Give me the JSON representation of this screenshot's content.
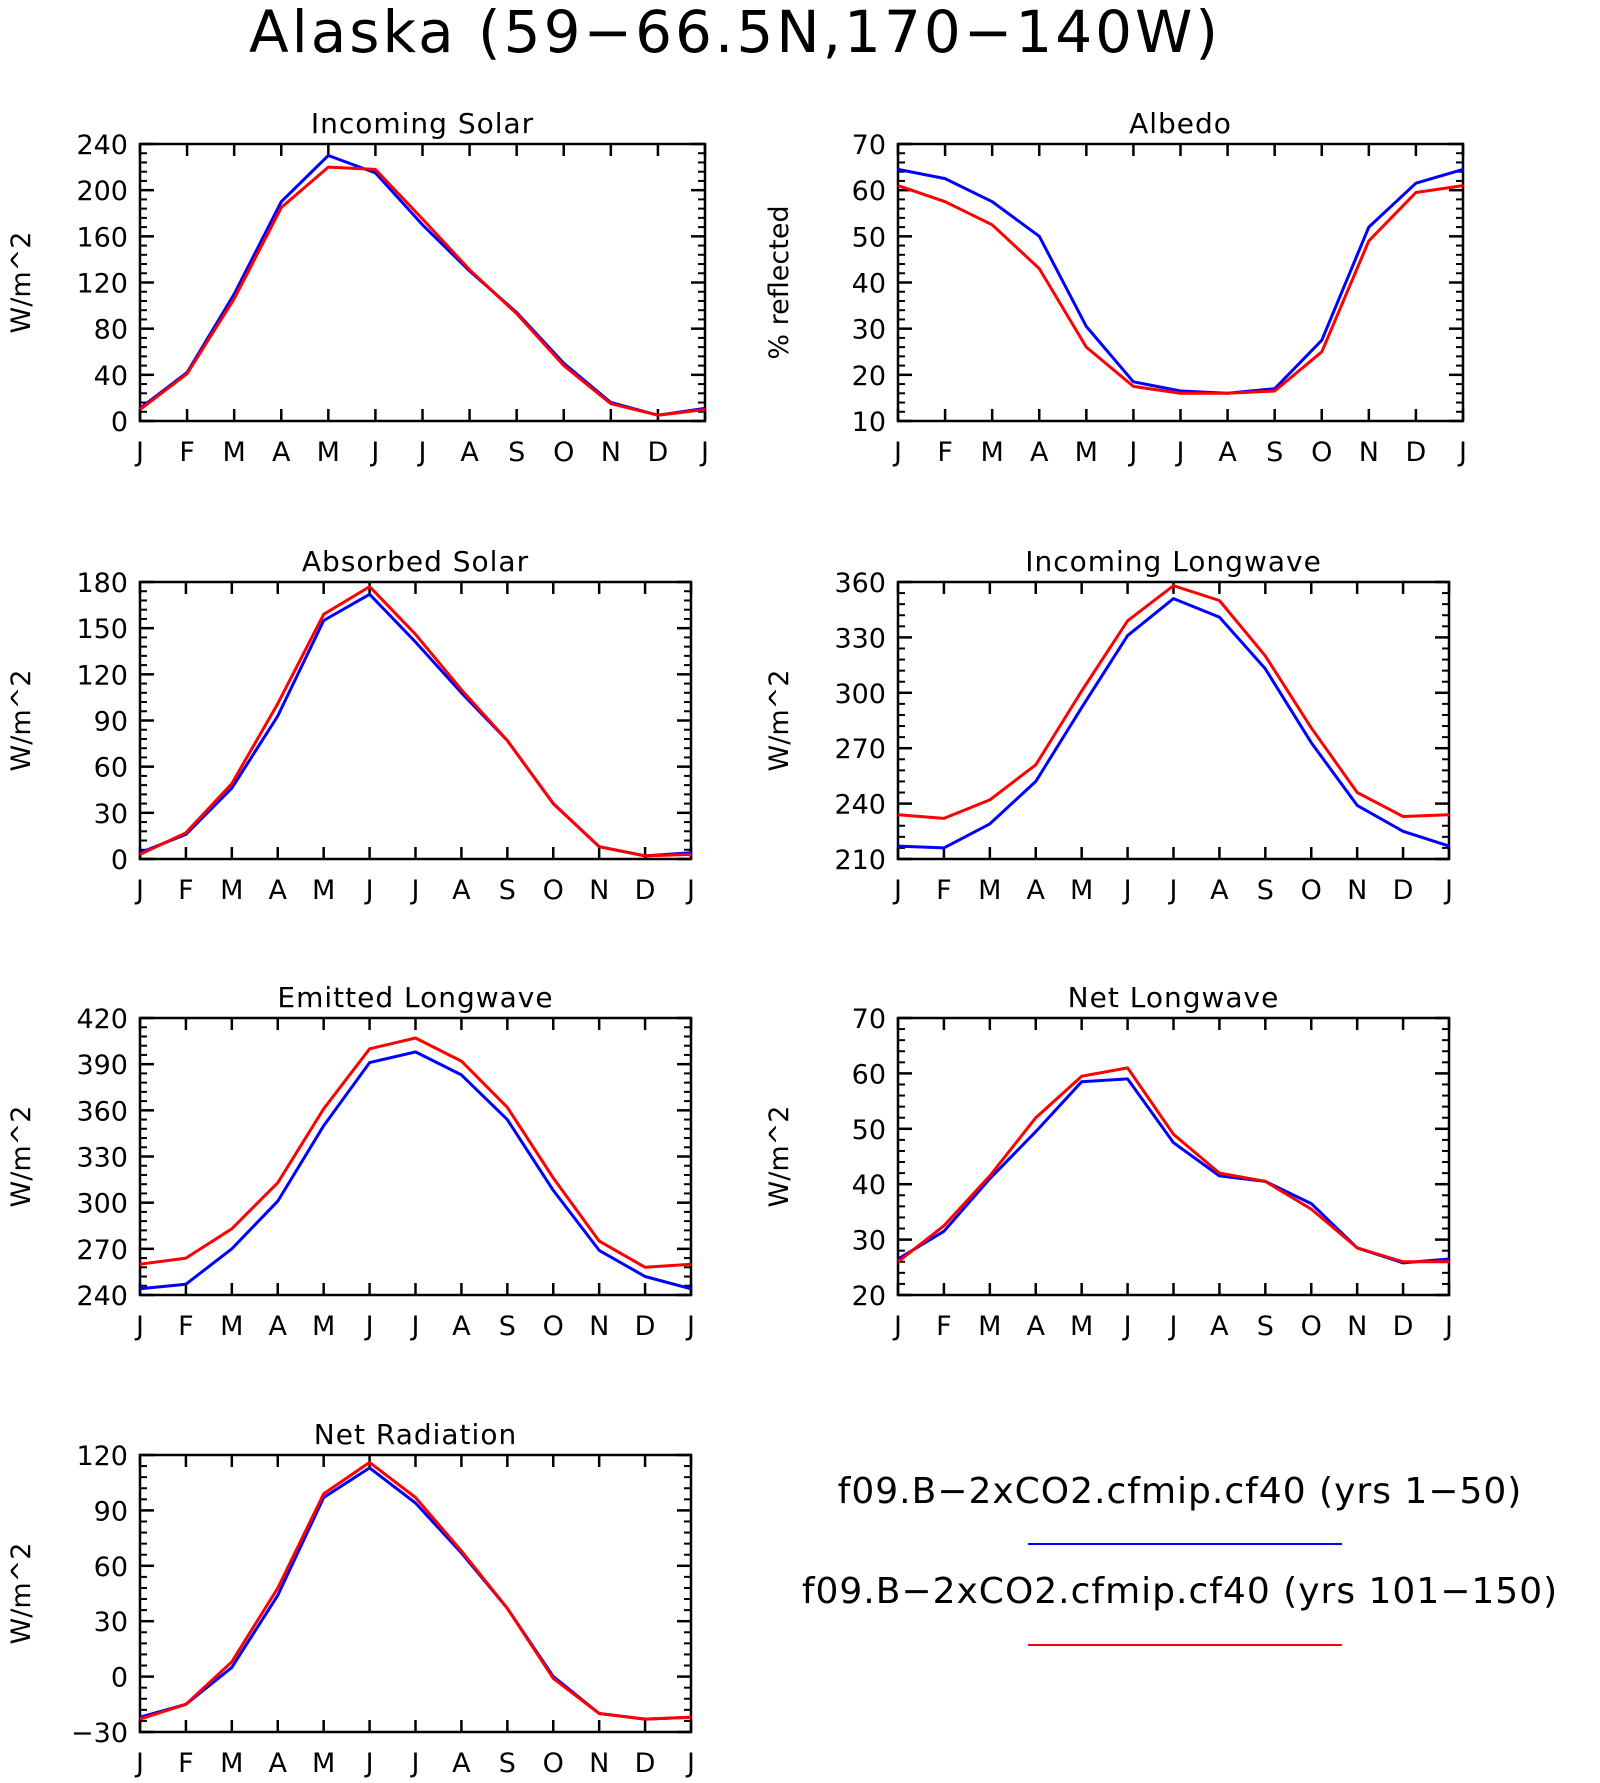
{
  "figure": {
    "title": "Alaska (59−66.5N,170−140W)"
  },
  "legend": [
    {
      "label": "f09.B−2xCO2.cfmip.cf40 (yrs 1−50)",
      "color": "#0000ff"
    },
    {
      "label": "f09.B−2xCO2.cfmip.cf40 (yrs 101−150)",
      "color": "#ff0000"
    }
  ],
  "chart_data": [
    {
      "type": "line",
      "title": "Incoming Solar",
      "ylabel": "W/m^2",
      "ylim": [
        0,
        240
      ],
      "yticks": [
        0,
        40,
        80,
        120,
        160,
        200,
        240
      ],
      "categories": [
        "J",
        "F",
        "M",
        "A",
        "M",
        "J",
        "J",
        "A",
        "S",
        "O",
        "N",
        "D",
        "J"
      ],
      "series": [
        {
          "color": "#0000ff",
          "values": [
            11,
            42,
            110,
            190,
            230,
            215,
            170,
            130,
            94,
            50,
            16,
            5,
            11
          ]
        },
        {
          "color": "#ff0000",
          "values": [
            10,
            41,
            106,
            185,
            220,
            218,
            175,
            131,
            93,
            48,
            15,
            5,
            10
          ]
        }
      ]
    },
    {
      "type": "line",
      "title": "Albedo",
      "ylabel": "% reflected",
      "ylim": [
        10,
        70
      ],
      "yticks": [
        10,
        20,
        30,
        40,
        50,
        60,
        70
      ],
      "categories": [
        "J",
        "F",
        "M",
        "A",
        "M",
        "J",
        "J",
        "A",
        "S",
        "O",
        "N",
        "D",
        "J"
      ],
      "series": [
        {
          "color": "#0000ff",
          "values": [
            64.5,
            62.5,
            57.5,
            50,
            30.5,
            18.5,
            16.5,
            16,
            17,
            27.5,
            52,
            61.5,
            64.5
          ]
        },
        {
          "color": "#ff0000",
          "values": [
            61,
            57.5,
            52.5,
            43,
            26,
            17.5,
            16,
            16,
            16.5,
            25,
            49,
            59.5,
            61
          ]
        }
      ]
    },
    {
      "type": "line",
      "title": "Absorbed Solar",
      "ylabel": "W/m^2",
      "ylim": [
        0,
        180
      ],
      "yticks": [
        0,
        30,
        60,
        90,
        120,
        150,
        180
      ],
      "categories": [
        "J",
        "F",
        "M",
        "A",
        "M",
        "J",
        "J",
        "A",
        "S",
        "O",
        "N",
        "D",
        "J"
      ],
      "series": [
        {
          "color": "#0000ff",
          "values": [
            4,
            16,
            46,
            93,
            155,
            172,
            141,
            108,
            77,
            36,
            8,
            2,
            4
          ]
        },
        {
          "color": "#ff0000",
          "values": [
            3,
            17,
            49,
            101,
            159,
            177,
            146,
            110,
            77,
            36,
            8,
            2,
            3
          ]
        }
      ]
    },
    {
      "type": "line",
      "title": "Incoming Longwave",
      "ylabel": "W/m^2",
      "ylim": [
        210,
        360
      ],
      "yticks": [
        210,
        240,
        270,
        300,
        330,
        360
      ],
      "categories": [
        "J",
        "F",
        "M",
        "A",
        "M",
        "J",
        "J",
        "A",
        "S",
        "O",
        "N",
        "D",
        "J"
      ],
      "series": [
        {
          "color": "#0000ff",
          "values": [
            217,
            216,
            229,
            252,
            292,
            331,
            351,
            341,
            313,
            273,
            239,
            225,
            217
          ]
        },
        {
          "color": "#ff0000",
          "values": [
            234,
            232,
            242,
            261,
            301,
            339,
            358,
            350,
            320,
            281,
            246,
            233,
            234
          ]
        }
      ]
    },
    {
      "type": "line",
      "title": "Emitted Longwave",
      "ylabel": "W/m^2",
      "ylim": [
        240,
        420
      ],
      "yticks": [
        240,
        270,
        300,
        330,
        360,
        390,
        420
      ],
      "categories": [
        "J",
        "F",
        "M",
        "A",
        "M",
        "J",
        "J",
        "A",
        "S",
        "O",
        "N",
        "D",
        "J"
      ],
      "series": [
        {
          "color": "#0000ff",
          "values": [
            244,
            247,
            270,
            301,
            350,
            391,
            398,
            383,
            354,
            308,
            269,
            252,
            244
          ]
        },
        {
          "color": "#ff0000",
          "values": [
            260,
            264,
            283,
            313,
            361,
            400,
            407,
            392,
            362,
            316,
            275,
            258,
            260
          ]
        }
      ]
    },
    {
      "type": "line",
      "title": "Net Longwave",
      "ylabel": "W/m^2",
      "ylim": [
        20,
        70
      ],
      "yticks": [
        20,
        30,
        40,
        50,
        60,
        70
      ],
      "categories": [
        "J",
        "F",
        "M",
        "A",
        "M",
        "J",
        "J",
        "A",
        "S",
        "O",
        "N",
        "D",
        "J"
      ],
      "series": [
        {
          "color": "#0000ff",
          "values": [
            26.5,
            31.5,
            41,
            49.5,
            58.5,
            59,
            47.5,
            41.5,
            40.5,
            36.5,
            28.5,
            25.8,
            26.5
          ]
        },
        {
          "color": "#ff0000",
          "values": [
            26,
            32.5,
            41.5,
            52,
            59.5,
            61,
            49,
            42,
            40.5,
            35.5,
            28.5,
            26,
            26
          ]
        }
      ]
    },
    {
      "type": "line",
      "title": "Net Radiation",
      "ylabel": "W/m^2",
      "ylim": [
        -30,
        120
      ],
      "yticks": [
        -30,
        0,
        30,
        60,
        90,
        120
      ],
      "categories": [
        "J",
        "F",
        "M",
        "A",
        "M",
        "J",
        "J",
        "A",
        "S",
        "O",
        "N",
        "D",
        "J"
      ],
      "series": [
        {
          "color": "#0000ff",
          "values": [
            -22,
            -15,
            5,
            44,
            97,
            113,
            94,
            67,
            37,
            0,
            -20,
            -23,
            -22
          ]
        },
        {
          "color": "#ff0000",
          "values": [
            -23,
            -15,
            8,
            48,
            99,
            116,
            97,
            68,
            37,
            -1,
            -20,
            -23,
            -22
          ]
        }
      ]
    }
  ]
}
